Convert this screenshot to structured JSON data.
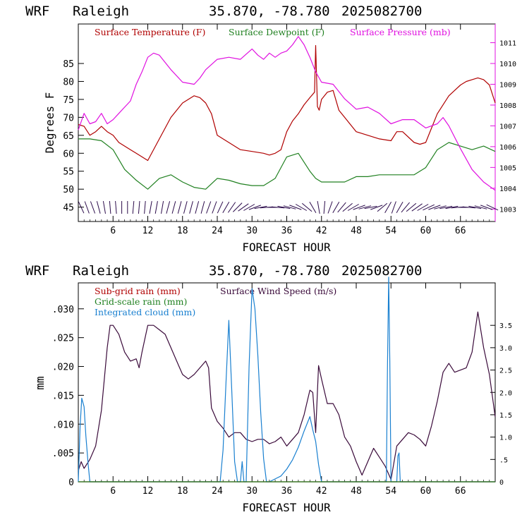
{
  "colors": {
    "temperature": "#b00000",
    "dewpoint": "#208020",
    "pressure": "#e010e0",
    "wind_barbs": "#2a0a4a",
    "wind_speed": "#3a0a3a",
    "integrated_cloud": "#1a80d0"
  },
  "top_header": {
    "model": "WRF",
    "location": "Raleigh",
    "coords": "35.870, -78.780",
    "init": "2025082700"
  },
  "bottom_header": {
    "model": "WRF",
    "location": "Raleigh",
    "coords": "35.870, -78.780",
    "init": "2025082700"
  },
  "chart_data": [
    {
      "type": "line",
      "title": "",
      "xlabel": "FORECAST HOUR",
      "ylabel": "Degrees F",
      "xlim": [
        0,
        72
      ],
      "ylim": [
        41,
        96
      ],
      "ylim_right": [
        1002.4,
        1011.9
      ],
      "x_ticks": [
        "6",
        "12",
        "18",
        "24",
        "30",
        "36",
        "42",
        "48",
        "54",
        "60",
        "66"
      ],
      "y_ticks": [
        "45",
        "50",
        "55",
        "60",
        "65",
        "70",
        "75",
        "80",
        "85"
      ],
      "y_right_ticks": [
        "1003",
        "1004",
        "1005",
        "1006",
        "1007",
        "1008",
        "1009",
        "1010",
        "1011"
      ],
      "legend": [
        "Surface Temperature (F)",
        "Surface Dewpoint (F)",
        "Surface Pressure (mb)"
      ],
      "legend_position": "top",
      "series": [
        {
          "name": "Surface Temperature (F)",
          "axis": "left",
          "x": [
            0,
            1,
            2,
            3,
            4,
            5,
            6,
            7,
            8,
            9,
            10,
            11,
            12,
            14,
            16,
            18,
            20,
            21,
            22,
            23,
            24,
            26,
            28,
            30,
            32,
            33,
            34,
            35,
            36,
            37,
            38,
            39,
            40,
            40.8,
            41,
            41.3,
            41.6,
            42,
            43,
            44,
            45,
            46,
            48,
            50,
            52,
            54,
            55,
            56,
            58,
            59,
            60,
            61,
            62,
            64,
            66,
            67,
            68,
            69,
            70,
            71,
            72
          ],
          "values": [
            68,
            67.5,
            65,
            66,
            67.5,
            66,
            65,
            63,
            62,
            61,
            60,
            59,
            58,
            64,
            70,
            74,
            76,
            75.5,
            74,
            71,
            65,
            63,
            61,
            60.5,
            60,
            59.5,
            60,
            61,
            66,
            69,
            71,
            73.5,
            75.5,
            77,
            90,
            73,
            72,
            75,
            77,
            77.5,
            72,
            70,
            66,
            65,
            64,
            63.5,
            66,
            66,
            63,
            62.5,
            63,
            67,
            71,
            76,
            79,
            80,
            80.5,
            81,
            80.5,
            79,
            74
          ]
        },
        {
          "name": "Surface Dewpoint (F)",
          "axis": "left",
          "x": [
            0,
            2,
            4,
            6,
            8,
            10,
            12,
            14,
            16,
            18,
            20,
            22,
            24,
            26,
            28,
            30,
            32,
            34,
            36,
            38,
            40,
            41,
            42,
            44,
            46,
            48,
            50,
            52,
            54,
            56,
            58,
            60,
            62,
            64,
            66,
            68,
            70,
            72
          ],
          "values": [
            64,
            64,
            63.5,
            61,
            55.5,
            52.5,
            50,
            53,
            54,
            52,
            50.5,
            50,
            53,
            52.5,
            51.5,
            51,
            51,
            53,
            59,
            60,
            55,
            53,
            52,
            52,
            52,
            53.5,
            53.5,
            54,
            54,
            54,
            54,
            56,
            61,
            63,
            62,
            61,
            62,
            60.5
          ]
        },
        {
          "name": "Surface Pressure (mb)",
          "axis": "right",
          "x": [
            0,
            1,
            2,
            3,
            4,
            5,
            6,
            7,
            8,
            9,
            10,
            11,
            12,
            13,
            14,
            16,
            18,
            20,
            21,
            22,
            24,
            26,
            28,
            30,
            31,
            32,
            33,
            34,
            35,
            36,
            37,
            38,
            39,
            40,
            41,
            42,
            44,
            46,
            48,
            50,
            52,
            54,
            56,
            58,
            60,
            62,
            63,
            64,
            66,
            68,
            70,
            72
          ],
          "values": [
            1006.8,
            1007.6,
            1007.1,
            1007.2,
            1007.6,
            1007.1,
            1007.3,
            1007.6,
            1007.9,
            1008.2,
            1009.0,
            1009.6,
            1010.3,
            1010.5,
            1010.4,
            1009.7,
            1009.1,
            1009.0,
            1009.3,
            1009.7,
            1010.2,
            1010.3,
            1010.2,
            1010.7,
            1010.4,
            1010.2,
            1010.5,
            1010.3,
            1010.5,
            1010.6,
            1010.9,
            1011.3,
            1010.9,
            1010.3,
            1009.6,
            1009.1,
            1009.0,
            1008.3,
            1007.8,
            1007.9,
            1007.6,
            1007.1,
            1007.3,
            1007.3,
            1006.9,
            1007.1,
            1007.4,
            1007.0,
            1005.9,
            1004.9,
            1004.3,
            1003.9
          ]
        }
      ],
      "wind_barbs": {
        "x": [
          0,
          1,
          2,
          3,
          4,
          5,
          6,
          7,
          8,
          9,
          10,
          11,
          12,
          13,
          14,
          15,
          16,
          17,
          18,
          19,
          20,
          21,
          22,
          23,
          24,
          25,
          26,
          27,
          28,
          29,
          30,
          31,
          32,
          33,
          34,
          35,
          36,
          37,
          38,
          39,
          40,
          41,
          42,
          43,
          44,
          45,
          46,
          47,
          48,
          49,
          50,
          51,
          52,
          53,
          54,
          55,
          56,
          57,
          58,
          59,
          60,
          61,
          62,
          63,
          64,
          65,
          66,
          67,
          68,
          69,
          70,
          71
        ],
        "angle_deg": [
          115,
          110,
          110,
          105,
          100,
          95,
          95,
          90,
          90,
          85,
          85,
          85,
          80,
          80,
          80,
          75,
          75,
          75,
          75,
          75,
          75,
          75,
          70,
          70,
          65,
          60,
          55,
          45,
          35,
          30,
          20,
          10,
          5,
          0,
          355,
          350,
          345,
          340,
          330,
          320,
          300,
          280,
          265,
          250,
          240,
          230,
          220,
          210,
          200,
          195,
          190,
          200,
          220,
          240,
          250,
          240,
          230,
          220,
          215,
          210,
          205,
          200,
          195,
          190,
          190,
          185,
          180,
          175,
          170,
          165,
          160,
          155
        ]
      }
    },
    {
      "type": "line",
      "title": "",
      "xlabel": "FORECAST HOUR",
      "ylabel": "mm",
      "xlim": [
        0,
        72
      ],
      "ylim": [
        0,
        0.0345
      ],
      "ylim_right": [
        0,
        4.45
      ],
      "x_ticks": [
        "6",
        "12",
        "18",
        "24",
        "30",
        "36",
        "42",
        "48",
        "54",
        "60",
        "66"
      ],
      "y_ticks": [
        "0",
        ".005",
        ".010",
        ".015",
        ".020",
        ".025",
        ".030"
      ],
      "y_right_ticks": [
        "0",
        ".5",
        "1.0",
        "1.5",
        "2.0",
        "2.5",
        "3.0",
        "3.5"
      ],
      "legend": [
        "Sub-grid rain (mm)",
        "Grid-scale rain (mm)",
        "Integrated cloud (mm)",
        "Surface Wind Speed (m/s)"
      ],
      "legend_position": "top",
      "series": [
        {
          "name": "Surface Wind Speed (m/s)",
          "axis": "right",
          "x": [
            0,
            0.5,
            1,
            2,
            3,
            4,
            5,
            5.5,
            6,
            7,
            8,
            9,
            10,
            10.5,
            11,
            12,
            13,
            14,
            15,
            16,
            17,
            18,
            19,
            20,
            21,
            22,
            22.5,
            23,
            24,
            25,
            26,
            27,
            28,
            29,
            30,
            31,
            32,
            33,
            34,
            35,
            36,
            37,
            38,
            39,
            40,
            40.5,
            41,
            41.5,
            42,
            43,
            44,
            45,
            46,
            47,
            48,
            49,
            50,
            51,
            52,
            53,
            54,
            55,
            56,
            57,
            58,
            59,
            60,
            61,
            62,
            63,
            64,
            65,
            66,
            67,
            68,
            69,
            70,
            71,
            72
          ],
          "values": [
            0.25,
            0.45,
            0.3,
            0.5,
            0.8,
            1.6,
            3.0,
            3.5,
            3.5,
            3.3,
            2.9,
            2.7,
            2.75,
            2.55,
            2.9,
            3.5,
            3.5,
            3.4,
            3.3,
            3.0,
            2.7,
            2.4,
            2.3,
            2.4,
            2.55,
            2.7,
            2.55,
            1.65,
            1.35,
            1.2,
            1.0,
            1.1,
            1.1,
            0.95,
            0.9,
            0.95,
            0.95,
            0.85,
            0.9,
            1.0,
            0.8,
            0.95,
            1.1,
            1.5,
            2.05,
            2.0,
            1.1,
            2.6,
            2.3,
            1.75,
            1.75,
            1.5,
            1.0,
            0.8,
            0.45,
            0.15,
            0.45,
            0.75,
            0.55,
            0.35,
            0.05,
            0.8,
            0.95,
            1.1,
            1.05,
            0.95,
            0.8,
            1.25,
            1.8,
            2.45,
            2.65,
            2.45,
            2.5,
            2.55,
            2.9,
            3.8,
            3.0,
            2.4,
            1.45
          ]
        },
        {
          "name": "Integrated cloud (mm)",
          "axis": "left",
          "x": [
            0,
            0.3,
            0.6,
            1,
            1.3,
            1.7,
            2,
            24.5,
            25,
            25.5,
            26,
            26.5,
            27,
            27.5,
            28,
            28.3,
            28.6,
            29,
            29.5,
            30,
            30.5,
            31,
            31.5,
            32,
            32.5,
            33,
            34,
            35,
            36,
            37,
            38,
            39,
            40,
            40.5,
            41,
            41.5,
            42,
            53.2,
            53.4,
            53.6,
            53.8,
            54,
            55,
            55.2,
            55.4,
            55.6,
            72
          ],
          "values": [
            0,
            0.0095,
            0.0145,
            0.013,
            0.008,
            0.003,
            0,
            0,
            0.0055,
            0.017,
            0.028,
            0.016,
            0.0035,
            0,
            0,
            0.0035,
            0,
            0,
            0.02,
            0.0335,
            0.03,
            0.022,
            0.012,
            0.004,
            0,
            0,
            0.0005,
            0.001,
            0.0022,
            0.0038,
            0.006,
            0.0088,
            0.0113,
            0.009,
            0.007,
            0.003,
            0,
            0,
            0.02,
            0.0355,
            0.021,
            0,
            0,
            0.0045,
            0.005,
            0,
            0
          ]
        },
        {
          "name": "Sub-grid rain (mm)",
          "axis": "left",
          "x": [
            0,
            72
          ],
          "values": [
            0,
            0
          ]
        },
        {
          "name": "Grid-scale rain (mm)",
          "axis": "left",
          "x": [
            0,
            72
          ],
          "values": [
            0,
            0
          ]
        }
      ]
    }
  ]
}
